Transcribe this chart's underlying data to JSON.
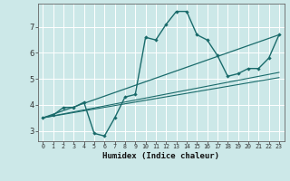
{
  "xlabel": "Humidex (Indice chaleur)",
  "bg_color": "#cce8e8",
  "grid_color": "#ffffff",
  "line_color": "#1a6b6b",
  "xtick_labels": [
    "0",
    "1",
    "2",
    "3",
    "4",
    "5",
    "6",
    "7",
    "8",
    "9",
    "10",
    "11",
    "12",
    "13",
    "14",
    "15",
    "16",
    "17",
    "18",
    "19",
    "20",
    "21",
    "22",
    "23"
  ],
  "ytick_labels": [
    "3",
    "4",
    "5",
    "6",
    "7"
  ],
  "ylim": [
    2.6,
    7.9
  ],
  "xlim": [
    -0.5,
    23.5
  ],
  "main_x": [
    0,
    1,
    2,
    3,
    4,
    5,
    6,
    7,
    8,
    9,
    10,
    11,
    12,
    13,
    14,
    15,
    16,
    17,
    18,
    19,
    20,
    21,
    22,
    23
  ],
  "main_y": [
    3.5,
    3.6,
    3.9,
    3.9,
    4.1,
    2.9,
    2.8,
    3.5,
    4.3,
    4.4,
    6.6,
    6.5,
    7.1,
    7.6,
    7.6,
    6.7,
    6.5,
    5.9,
    5.1,
    5.2,
    5.4,
    5.4,
    5.8,
    6.7
  ],
  "line1_x": [
    0,
    23
  ],
  "line1_y": [
    3.5,
    6.7
  ],
  "line2_x": [
    0,
    23
  ],
  "line2_y": [
    3.5,
    5.25
  ],
  "line3_x": [
    0,
    23
  ],
  "line3_y": [
    3.5,
    5.05
  ]
}
